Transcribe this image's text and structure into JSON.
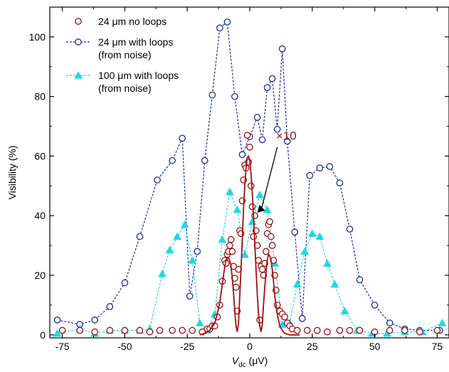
{
  "chart_data": {
    "type": "scatter",
    "xlabel_main": "V",
    "xlabel_sub": "dc",
    "xlabel_unit": " (μV)",
    "ylabel": "Visibility (%)",
    "xlim": [
      -80,
      80
    ],
    "ylim": [
      -1,
      110
    ],
    "xticks": [
      -75,
      -50,
      -25,
      0,
      25,
      50,
      75
    ],
    "yticks": [
      0,
      20,
      40,
      60,
      80,
      100
    ],
    "grid": false,
    "legend_position": "top-left",
    "annotation": {
      "text": "×10",
      "color": "#a01010",
      "from": [
        11,
        63
      ],
      "to": [
        3,
        41
      ]
    },
    "series": [
      {
        "name": "24 μm no loops",
        "style": "open-circle",
        "color": "#a01010",
        "connected": false,
        "x": [
          -75,
          -68,
          -62,
          -56,
          -50,
          -44,
          -40,
          -36,
          -31,
          -27,
          -23,
          -19,
          -17,
          -16,
          -15,
          -14,
          -13,
          -12,
          -11,
          -10,
          -9.5,
          -9,
          -8.5,
          -8,
          -7.5,
          -7,
          -6.5,
          -6,
          -5.5,
          -5,
          -4.5,
          -4,
          -3.5,
          -3,
          -2.5,
          -2,
          -1.5,
          -1,
          -0.5,
          0,
          0.5,
          1,
          1.5,
          2,
          2.5,
          3,
          3.5,
          4,
          4.5,
          5,
          5.5,
          6,
          6.5,
          7,
          7.5,
          8,
          8.5,
          9,
          9.5,
          10,
          10.5,
          11,
          12,
          13,
          14,
          15,
          16,
          17,
          19,
          23,
          27,
          31,
          36,
          40,
          44,
          50,
          56,
          62,
          68,
          75
        ],
        "y": [
          1.5,
          1.5,
          1,
          1.5,
          1.5,
          1.5,
          1,
          1.5,
          1.5,
          1.5,
          1.5,
          1,
          2,
          2,
          3,
          3,
          6,
          10,
          18,
          25,
          24,
          27,
          28,
          30,
          32,
          28,
          23,
          19,
          16,
          8,
          22,
          35,
          34,
          45,
          52,
          57,
          56,
          67,
          58,
          63,
          50,
          43,
          33,
          40,
          35,
          30,
          25,
          5,
          23,
          22,
          20,
          24,
          28,
          34,
          37,
          38,
          33,
          30,
          25,
          20,
          15,
          10,
          8,
          7,
          6,
          4,
          3,
          2,
          1.5,
          1.5,
          1.5,
          1,
          1.5,
          1.5,
          1.5,
          1,
          1.5,
          1.5,
          1,
          1.5
        ]
      },
      {
        "name": "24 μm with loops\n(from noise)",
        "style": "open-circle-dashed",
        "color": "#1a2ea0",
        "connected": true,
        "x": [
          -77,
          -68,
          -62,
          -56,
          -50,
          -44,
          -37,
          -31,
          -27,
          -24,
          -21,
          -18,
          -15,
          -12,
          -9,
          -6,
          -3,
          0,
          3,
          5,
          7,
          9,
          11,
          13,
          15,
          18,
          21,
          24,
          28,
          32,
          36,
          40,
          44,
          50,
          56,
          62,
          68,
          76
        ],
        "y": [
          5,
          3.5,
          5,
          9.5,
          17.5,
          33,
          52,
          58.5,
          66,
          13,
          28,
          58.5,
          80.5,
          103,
          105,
          80,
          60.5,
          66.5,
          73,
          65.5,
          83,
          86,
          69,
          96,
          65,
          34.5,
          5.5,
          53.5,
          56,
          56.5,
          51,
          35.5,
          18.5,
          10,
          4,
          2,
          1.5,
          1.5
        ]
      },
      {
        "name": "100 μm with loops\n(from noise)",
        "style": "filled-triangle-dashed",
        "color": "#1ed8e0",
        "connected": true,
        "x": [
          -77,
          -68,
          -62,
          -56,
          -50,
          -44,
          -40,
          -35,
          -32,
          -29,
          -26,
          -23,
          -20,
          -17,
          -14,
          -11,
          -8,
          -5,
          -2,
          1,
          4,
          7,
          10,
          13,
          16,
          19,
          22,
          25,
          28,
          31,
          34,
          38,
          43,
          49,
          55,
          62,
          69,
          77
        ],
        "y": [
          0.5,
          2,
          0.5,
          1.5,
          1.5,
          1.5,
          2,
          20.5,
          28.5,
          33,
          37,
          25,
          4,
          1.5,
          7,
          32,
          48,
          42,
          27,
          38,
          47,
          42,
          24,
          3.5,
          4,
          17,
          28,
          34,
          33,
          24,
          17,
          8,
          1.5,
          0.5,
          0.5,
          1,
          1,
          4
        ]
      },
      {
        "name": "",
        "style": "line",
        "color": "#a01010",
        "connected": true,
        "x": [
          -20,
          -18,
          -16,
          -14,
          -13,
          -12,
          -11,
          -10,
          -9.5,
          -9,
          -8.5,
          -8,
          -7.5,
          -7,
          -6.5,
          -6,
          -5.5,
          -5,
          -4.5,
          -4,
          -3.5,
          -3,
          -2.5,
          -2,
          -1.5,
          -1,
          -0.5,
          0,
          0.5,
          1,
          1.5,
          2,
          2.5,
          3,
          3.5,
          4,
          4.5,
          5,
          5.5,
          6,
          6.5,
          7,
          7.5,
          8,
          8.5,
          9,
          9.5,
          10,
          11,
          12,
          13,
          14,
          16,
          18,
          20
        ],
        "y": [
          0,
          0.5,
          1.5,
          4,
          7,
          11,
          17,
          23,
          25,
          26,
          26,
          25,
          23,
          19,
          14,
          8,
          3,
          1,
          4,
          13,
          22,
          32,
          42,
          50,
          56,
          59.5,
          60,
          58.5,
          54,
          48,
          40,
          31,
          22,
          14,
          7,
          3,
          1,
          3.5,
          10,
          16,
          21,
          25,
          27,
          26.5,
          25,
          22,
          18,
          13,
          7,
          3,
          1.5,
          0.5,
          0,
          0,
          0
        ]
      }
    ]
  }
}
